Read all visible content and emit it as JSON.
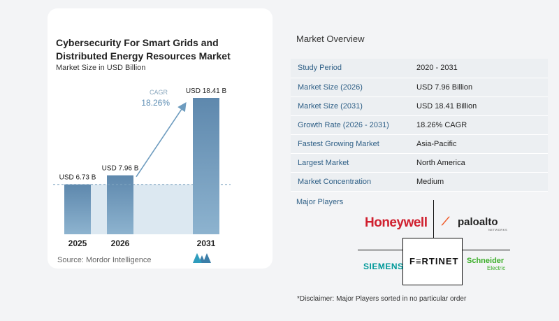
{
  "chart_data": {
    "type": "bar",
    "title": "Cybersecurity For Smart Grids and Distributed Energy Resources Market",
    "subtitle": "Market Size in USD Billion",
    "categories": [
      "2025",
      "2026",
      "2031"
    ],
    "values": [
      6.73,
      7.96,
      18.41
    ],
    "value_labels": [
      "USD 6.73 B",
      "USD 7.96 B",
      "USD 18.41 B"
    ],
    "ylim": [
      0,
      20
    ],
    "cagr_label": "CAGR",
    "cagr_value": "18.26%",
    "bar_color": "#5f8fb5",
    "bar_gradient_top": "#5e88ad",
    "bar_gradient_bottom": "#8db3cf",
    "shade_color": "#dce8f1",
    "arrow_color": "#6e9cbf"
  },
  "source": "Source: Mordor Intelligence",
  "overview": {
    "title": "Market Overview",
    "rows": [
      {
        "key": "Study Period",
        "value": "2020 - 2031"
      },
      {
        "key": "Market Size (2026)",
        "value": "USD 7.96 Billion"
      },
      {
        "key": "Market Size (2031)",
        "value": "USD 18.41 Billion"
      },
      {
        "key": "Growth Rate (2026 - 2031)",
        "value": "18.26% CAGR"
      },
      {
        "key": "Fastest Growing Market",
        "value": "Asia-Pacific"
      },
      {
        "key": "Largest Market",
        "value": "North America"
      },
      {
        "key": "Market Concentration",
        "value": "Medium"
      }
    ]
  },
  "players": {
    "title": "Major Players",
    "honeywell": "Honeywell",
    "paloalto_mark": "⟋",
    "paloalto": "paloalto",
    "paloalto_sub": "NETWORKS",
    "siemens": "SIEMENS",
    "fortinet": "F≡RTINET",
    "schneider": "Schneider",
    "schneider_sub": "Electric"
  },
  "disclaimer": "*Disclaimer: Major Players sorted in no particular order"
}
